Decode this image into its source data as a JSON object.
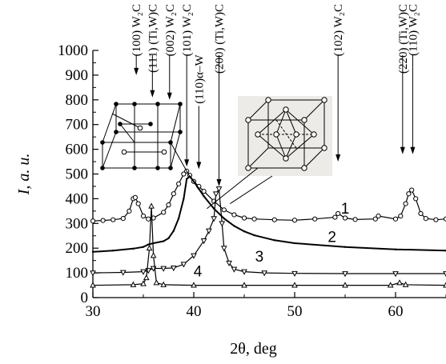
{
  "chart_data": {
    "type": "line",
    "xlabel": "2θ, deg",
    "ylabel": "I, a. u.",
    "xlim": [
      30,
      65
    ],
    "ylim": [
      0,
      1000
    ],
    "x_ticks": [
      30,
      40,
      50,
      60
    ],
    "x_tick_labels": [
      "30",
      "40",
      "50",
      "60"
    ],
    "y_ticks": [
      0,
      100,
      200,
      300,
      400,
      500,
      600,
      700,
      800,
      900,
      1000
    ],
    "y_tick_labels": [
      "0",
      "100",
      "200",
      "300",
      "400",
      "500",
      "600",
      "700",
      "800",
      "900",
      "1000"
    ],
    "grid": false,
    "series": [
      {
        "name": "1",
        "marker": "circle",
        "x": [
          30,
          31,
          32,
          33,
          33.6,
          34,
          34.2,
          34.5,
          35,
          35.5,
          36,
          37,
          37.5,
          38,
          38.5,
          39,
          39.3,
          39.6,
          40,
          40.5,
          41,
          42,
          43,
          44,
          45,
          46,
          48,
          50,
          52,
          54,
          54.3,
          55,
          56,
          58,
          58.3,
          60,
          60.5,
          61,
          61.3,
          61.6,
          62,
          62.5,
          63,
          64,
          65
        ],
        "y": [
          310,
          312,
          315,
          320,
          350,
          400,
          405,
          380,
          330,
          318,
          322,
          345,
          375,
          420,
          460,
          500,
          512,
          495,
          470,
          450,
          430,
          390,
          355,
          335,
          322,
          318,
          315,
          313,
          318,
          325,
          340,
          322,
          316,
          318,
          330,
          318,
          330,
          380,
          420,
          435,
          400,
          340,
          320,
          315,
          318
        ]
      },
      {
        "name": "2",
        "marker": "none",
        "x": [
          30,
          32,
          34,
          35,
          35.5,
          36,
          37,
          37.5,
          38,
          38.5,
          39,
          39.3,
          39.6,
          40,
          40.5,
          41,
          42,
          43,
          44,
          45,
          46,
          48,
          50,
          55,
          60,
          65
        ],
        "y": [
          185,
          190,
          198,
          205,
          215,
          220,
          228,
          240,
          270,
          320,
          400,
          480,
          490,
          470,
          440,
          410,
          360,
          320,
          290,
          268,
          252,
          232,
          220,
          205,
          195,
          190
        ]
      },
      {
        "name": "3",
        "marker": "triangle-down",
        "x": [
          30,
          33,
          35,
          35.5,
          36,
          37,
          38,
          39,
          40,
          41,
          41.5,
          42,
          42.2,
          42.5,
          42.8,
          43,
          43.5,
          44,
          45,
          47,
          50,
          55,
          60,
          65
        ],
        "y": [
          100,
          102,
          105,
          110,
          118,
          118,
          120,
          135,
          170,
          230,
          270,
          320,
          420,
          440,
          300,
          200,
          140,
          115,
          105,
          100,
          98,
          97,
          97,
          97
        ]
      },
      {
        "name": "4",
        "marker": "triangle-up",
        "x": [
          30,
          34,
          35,
          35.3,
          35.6,
          35.8,
          36,
          36.3,
          37,
          40,
          45,
          50,
          55,
          59.5,
          60.4,
          61,
          65
        ],
        "y": [
          50,
          52,
          56,
          80,
          200,
          370,
          170,
          60,
          52,
          50,
          50,
          50,
          50,
          50,
          60,
          52,
          50
        ]
      }
    ],
    "series_label_positions": [
      {
        "label": "1",
        "x": 55,
        "y": 340
      },
      {
        "label": "2",
        "x": 53.7,
        "y": 225
      },
      {
        "label": "3",
        "x": 46.5,
        "y": 145
      },
      {
        "label": "4",
        "x": 40.4,
        "y": 85
      }
    ],
    "annotations": [
      {
        "text": "(100) W₂C",
        "x": 34.3,
        "y_label_top": 1000,
        "arrow_to": 900
      },
      {
        "text": "(111) (Ti,W)C",
        "x": 35.9,
        "y_label_top": 1000,
        "arrow_to": 810
      },
      {
        "text": "(002) W₂C",
        "x": 37.6,
        "y_label_top": 1000,
        "arrow_to": 800
      },
      {
        "text": "(101) W₂C",
        "x": 39.3,
        "y_label_top": 1000,
        "arrow_to": 530
      },
      {
        "text": "(110)α–W",
        "x": 40.5,
        "y_label_top": 795,
        "arrow_to": 520
      },
      {
        "text": "(200) (Ti,W)C",
        "x": 42.5,
        "y_label_top": 1000,
        "arrow_to": 450
      },
      {
        "text": "(102) W₂C",
        "x": 54.3,
        "y_label_top": 1000,
        "arrow_to": 550
      },
      {
        "text": "(220) (Ti,W)C",
        "x": 60.7,
        "y_label_top": 1000,
        "arrow_to": 580
      },
      {
        "text": "(110) W₂C",
        "x": 61.7,
        "y_label_top": 1000,
        "arrow_to": 580
      }
    ]
  }
}
